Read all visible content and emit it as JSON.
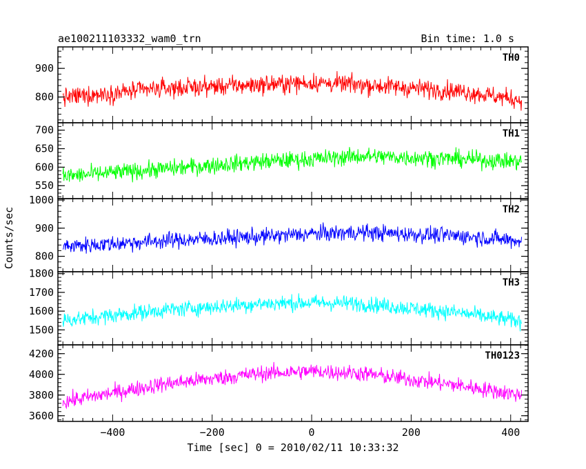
{
  "chart_data": {
    "type": "line",
    "title": "ae100211103332_wam0_trn",
    "subtitle": "Bin time: 1.0 s",
    "xlabel": "Time [sec] 0 = 2010/02/11 10:33:32",
    "ylabel": "Counts/sec",
    "xlim": [
      -510,
      435
    ],
    "x_ticks": [
      -400,
      -200,
      0,
      200,
      400
    ],
    "x_tick_labels": [
      "−400",
      "−200",
      "0",
      "200",
      "400"
    ],
    "x_range": [
      -500,
      422
    ],
    "grid": false,
    "panels": [
      {
        "name": "TH0",
        "color": "#ff0000",
        "ylim": [
          710,
          975
        ],
        "ticks": [
          800,
          900
        ],
        "tick_labels": [
          "800",
          "900"
        ],
        "trend": [
          [
            -500,
            798
          ],
          [
            -300,
            830
          ],
          [
            -100,
            843
          ],
          [
            0,
            850
          ],
          [
            100,
            843
          ],
          [
            300,
            820
          ],
          [
            420,
            790
          ]
        ],
        "noise": 42
      },
      {
        "name": "TH1",
        "color": "#00ff00",
        "ylim": [
          515,
          720
        ],
        "ticks": [
          550,
          600,
          650,
          700
        ],
        "tick_labels": [
          "550",
          "600",
          "650",
          "700"
        ],
        "trend": [
          [
            -500,
            575
          ],
          [
            -300,
            595
          ],
          [
            -100,
            615
          ],
          [
            0,
            622
          ],
          [
            100,
            630
          ],
          [
            300,
            622
          ],
          [
            420,
            615
          ]
        ],
        "noise": 30
      },
      {
        "name": "TH2",
        "color": "#0000ff",
        "ylim": [
          745,
          1005
        ],
        "ticks": [
          800,
          900,
          1000
        ],
        "tick_labels": [
          "800",
          "900",
          "1000"
        ],
        "trend": [
          [
            -500,
            835
          ],
          [
            -300,
            855
          ],
          [
            -100,
            870
          ],
          [
            0,
            880
          ],
          [
            100,
            885
          ],
          [
            300,
            872
          ],
          [
            420,
            855
          ]
        ],
        "noise": 38
      },
      {
        "name": "TH3",
        "color": "#00ffff",
        "ylim": [
          1420,
          1810
        ],
        "ticks": [
          1500,
          1600,
          1700,
          1800
        ],
        "tick_labels": [
          "1500",
          "1600",
          "1700",
          "1800"
        ],
        "trend": [
          [
            -500,
            1550
          ],
          [
            -300,
            1605
          ],
          [
            -100,
            1640
          ],
          [
            0,
            1645
          ],
          [
            100,
            1640
          ],
          [
            300,
            1590
          ],
          [
            420,
            1545
          ]
        ],
        "noise": 55
      },
      {
        "name": "TH0123",
        "color": "#ff00ff",
        "ylim": [
          3545,
          4285
        ],
        "ticks": [
          3600,
          3800,
          4000,
          4200
        ],
        "tick_labels": [
          "3600",
          "3800",
          "4000",
          "4200"
        ],
        "trend": [
          [
            -500,
            3735
          ],
          [
            -300,
            3905
          ],
          [
            -100,
            4010
          ],
          [
            0,
            4030
          ],
          [
            100,
            4010
          ],
          [
            300,
            3890
          ],
          [
            420,
            3800
          ]
        ],
        "noise": 100
      }
    ]
  }
}
